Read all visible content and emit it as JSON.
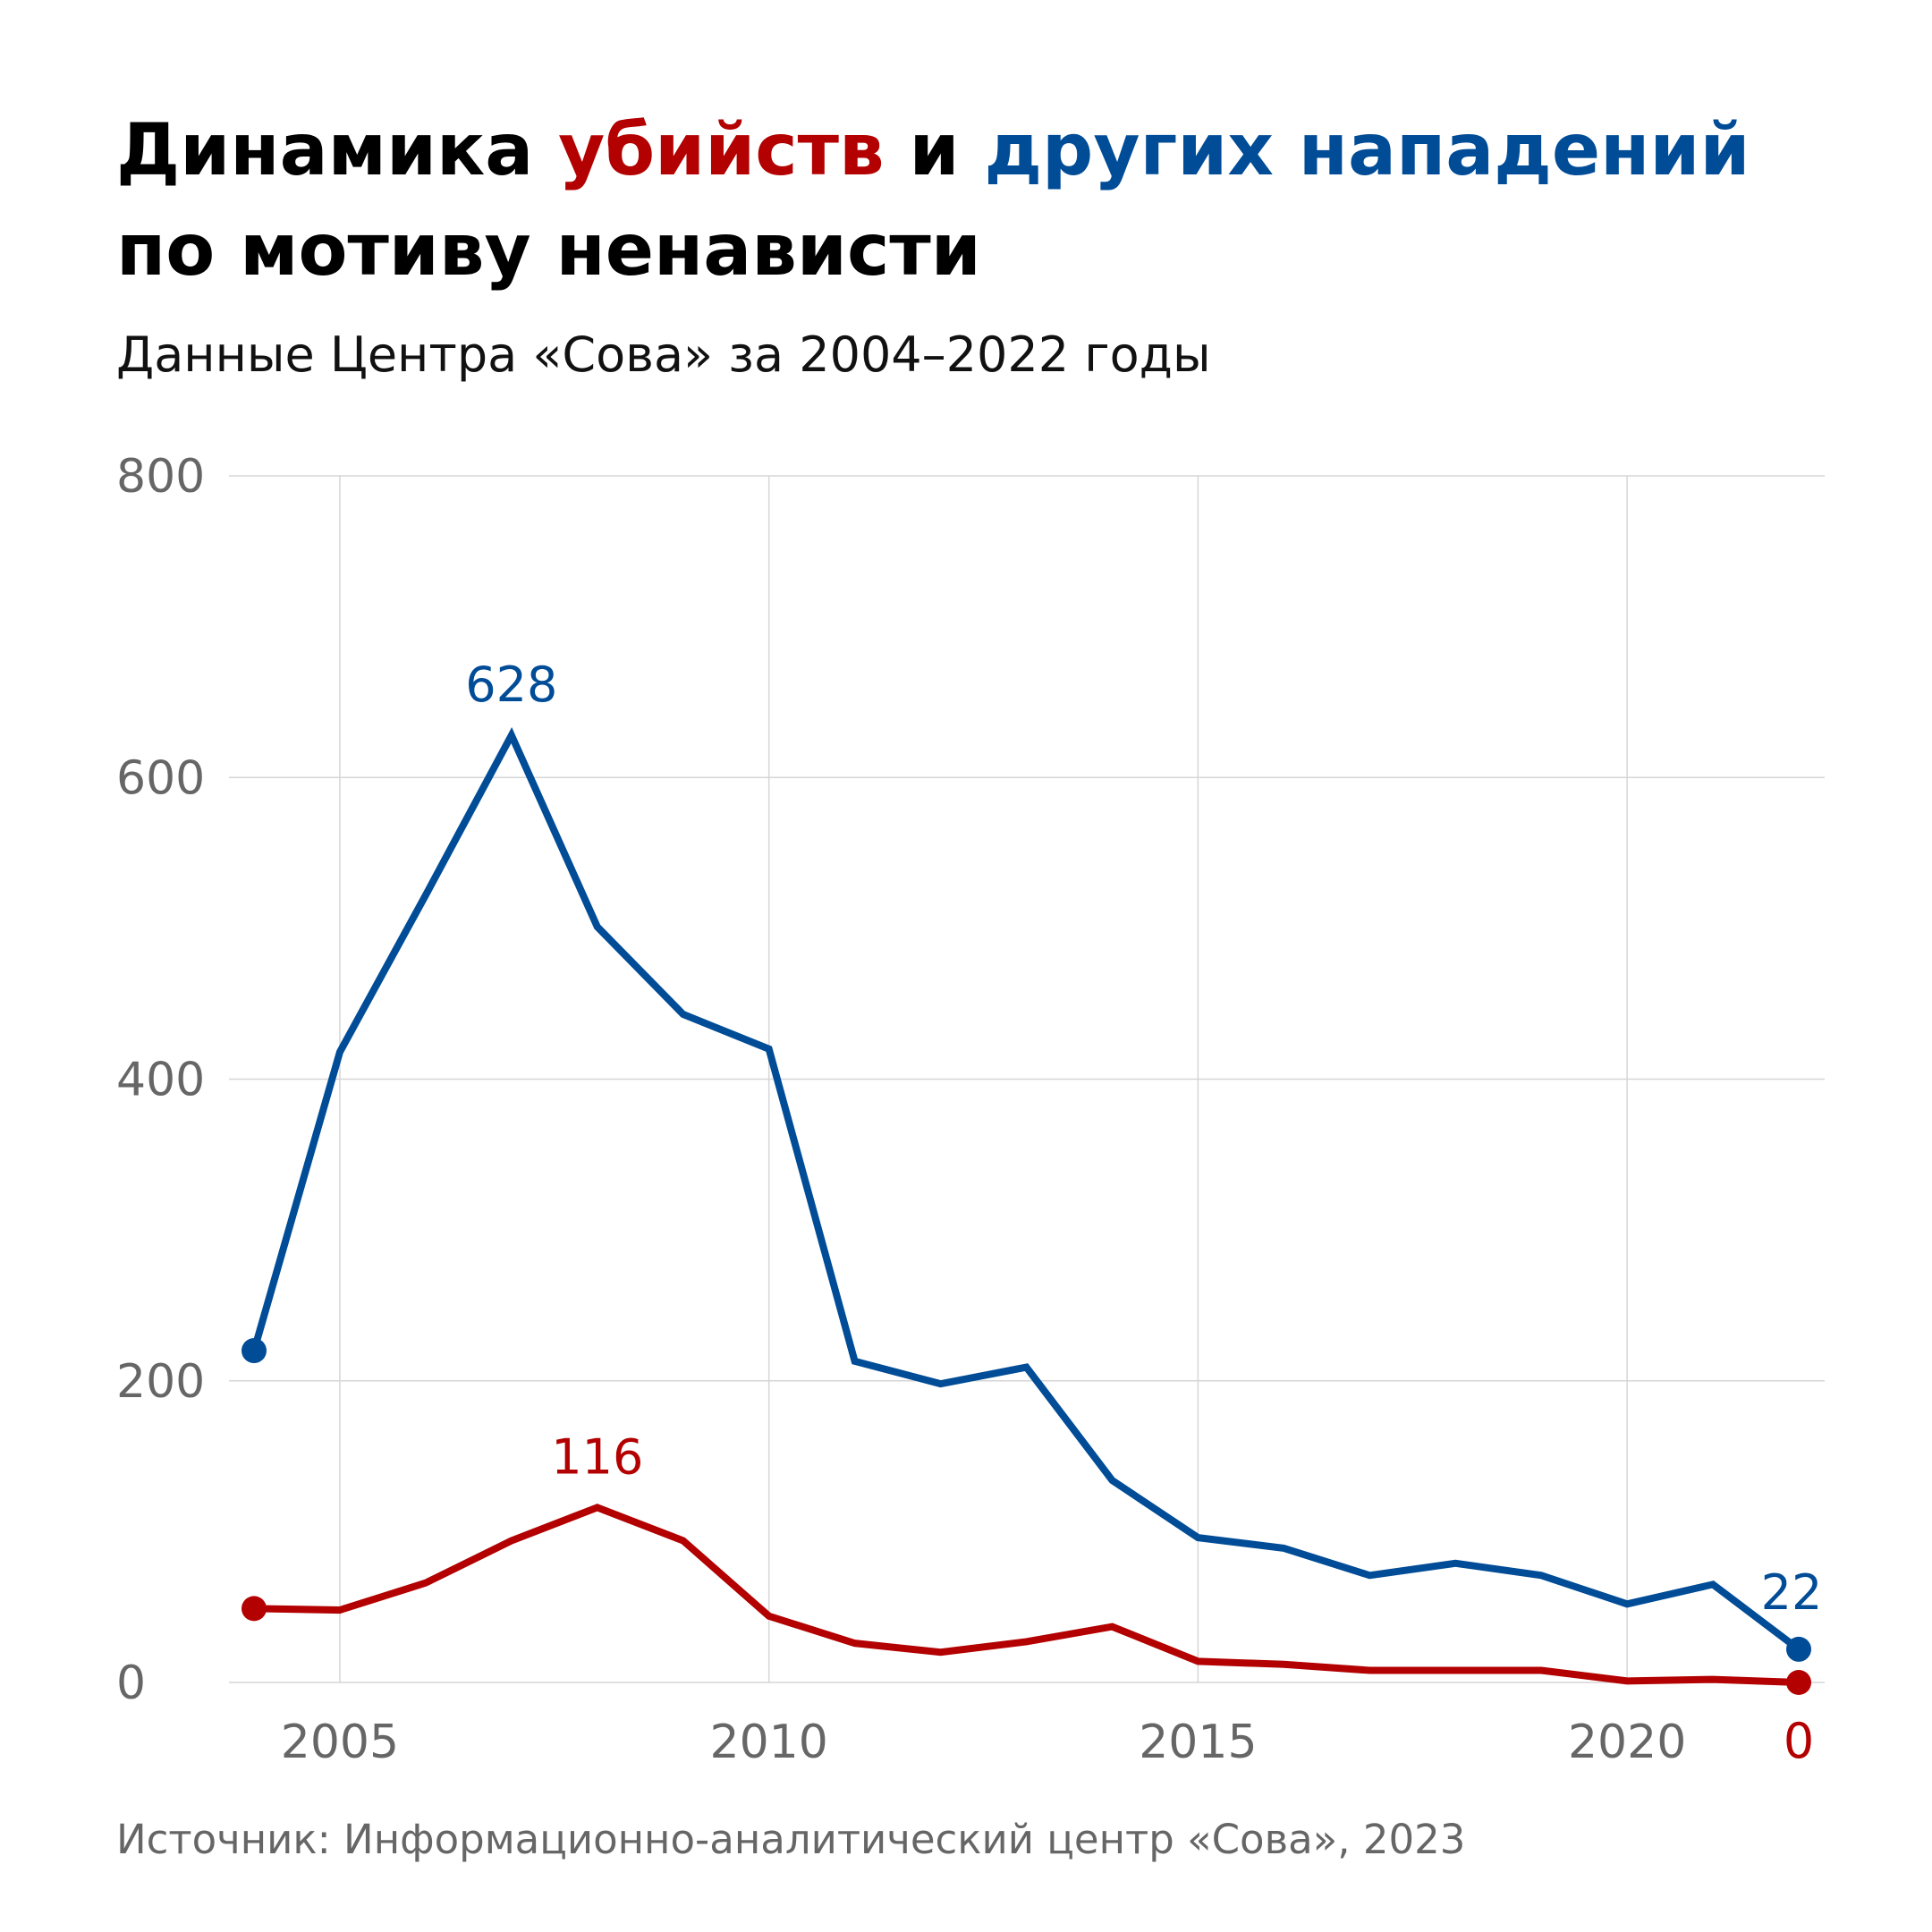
{
  "title": {
    "part1": "Динамика ",
    "part2": "убийств",
    "part3": " и ",
    "part4": "других нападений",
    "line2": "по мотиву ненависти"
  },
  "subtitle": "Данные Центра «Сова» за 2004–2022 годы",
  "source": "Источник: Информационно-аналитический центр «Сова», 2023",
  "chart_data": {
    "type": "line",
    "title": "Динамика убийств и других нападений по мотиву ненависти",
    "xlabel": "",
    "ylabel": "",
    "x": [
      2004,
      2005,
      2006,
      2007,
      2008,
      2009,
      2010,
      2011,
      2012,
      2013,
      2014,
      2015,
      2016,
      2017,
      2018,
      2019,
      2020,
      2021,
      2022
    ],
    "xticks": [
      "2005",
      "2010",
      "2015",
      "2020"
    ],
    "xtick_values": [
      2005,
      2010,
      2015,
      2020
    ],
    "yticks": [
      "0",
      "200",
      "400",
      "600",
      "800"
    ],
    "ylim": [
      0,
      800
    ],
    "grid": true,
    "series": [
      {
        "name": "другие нападения",
        "color": "#004c97",
        "values": [
          220,
          418,
          522,
          628,
          501,
          443,
          420,
          213,
          198,
          209,
          134,
          96,
          89,
          71,
          79,
          71,
          52,
          65,
          22
        ],
        "labels": [
          {
            "year": 2007,
            "text": "628"
          },
          {
            "year": 2022,
            "text": "22"
          }
        ]
      },
      {
        "name": "убийства",
        "color": "#b30000",
        "values": [
          49,
          48,
          66,
          94,
          116,
          94,
          44,
          26,
          20,
          27,
          37,
          14,
          12,
          8,
          8,
          8,
          1,
          2,
          0
        ],
        "labels": [
          {
            "year": 2008,
            "text": "116"
          },
          {
            "year": 2022,
            "text": "0"
          }
        ]
      }
    ]
  }
}
